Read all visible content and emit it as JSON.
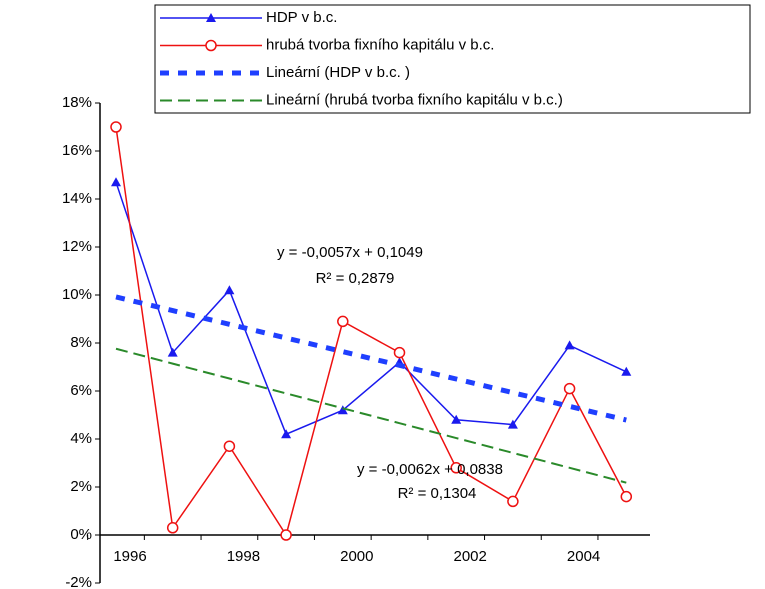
{
  "chart_data": {
    "type": "line",
    "categories": [
      "1996",
      null,
      "1998",
      null,
      "2000",
      null,
      "2002",
      null,
      "2004",
      null
    ],
    "series": [
      {
        "name": "HDP v b.c.",
        "color": "#1a1aee",
        "marker": "triangle",
        "dash": "solid",
        "values": [
          14.7,
          7.6,
          10.2,
          4.2,
          5.2,
          7.2,
          4.8,
          4.6,
          7.9,
          6.8
        ]
      },
      {
        "name": "hrubá tvorba fixního kapitálu v b.c.",
        "color": "#ee1111",
        "marker": "circle",
        "dash": "solid",
        "values": [
          17.0,
          0.3,
          3.7,
          0,
          8.9,
          7.6,
          2.8,
          1.4,
          6.1,
          1.6
        ]
      },
      {
        "name": "Lineární (HDP v b.c. )",
        "color": "#1f3fff",
        "marker": "none",
        "dash": "dotted",
        "values": [
          9.92,
          9.35,
          8.78,
          8.21,
          7.64,
          7.07,
          6.5,
          5.93,
          5.36,
          4.79
        ]
      },
      {
        "name": "Lineární (hrubá tvorba fixního kapitálu v b.c.)",
        "color": "#2a8a2a",
        "marker": "none",
        "dash": "dashed",
        "values": [
          7.76,
          7.14,
          6.52,
          5.9,
          5.28,
          4.66,
          4.04,
          3.42,
          2.8,
          2.18
        ]
      }
    ],
    "ylim": [
      -2,
      18
    ],
    "yticks": [
      {
        "value": -2,
        "label": "-2%"
      },
      {
        "value": 0,
        "label": "0%"
      },
      {
        "value": 2,
        "label": "2%"
      },
      {
        "value": 4,
        "label": "4%"
      },
      {
        "value": 6,
        "label": "6%"
      },
      {
        "value": 8,
        "label": "8%"
      },
      {
        "value": 10,
        "label": "10%"
      },
      {
        "value": 12,
        "label": "12%"
      },
      {
        "value": 14,
        "label": "14%"
      },
      {
        "value": 16,
        "label": "16%"
      },
      {
        "value": 18,
        "label": "18%"
      }
    ],
    "annotations": [
      "y = -0,0057x + 0,1049",
      "R² = 0,2879",
      "y = -0,0062x + 0,0838",
      "R² = 0,1304"
    ],
    "legend": "top-right"
  }
}
